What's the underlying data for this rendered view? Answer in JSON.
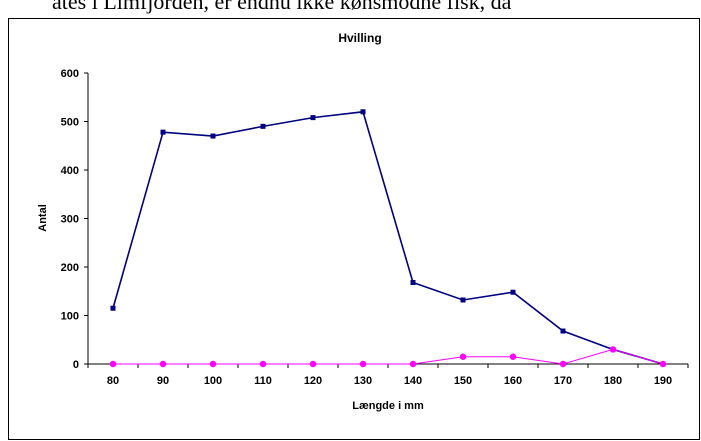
{
  "document_text": "ates i Limfjorden, er endnu ikke kønsmodne fisk, da",
  "chart_data": {
    "type": "line",
    "title": "Hvilling",
    "x_label": "Længde i mm",
    "y_label": "Antal",
    "categories": [
      80,
      90,
      100,
      110,
      120,
      130,
      140,
      150,
      160,
      170,
      180,
      190
    ],
    "series": [
      {
        "color": "#000080",
        "marker": "square",
        "values": [
          115,
          478,
          470,
          490,
          508,
          520,
          168,
          132,
          148,
          68,
          30,
          0
        ]
      },
      {
        "color": "#ff00ff",
        "marker": "circle",
        "values": [
          0,
          0,
          0,
          0,
          0,
          0,
          0,
          15,
          15,
          0,
          30,
          0
        ]
      }
    ],
    "ylim": [
      0,
      600
    ],
    "yticks": [
      0,
      100,
      200,
      300,
      400,
      500,
      600
    ],
    "grid": false
  }
}
